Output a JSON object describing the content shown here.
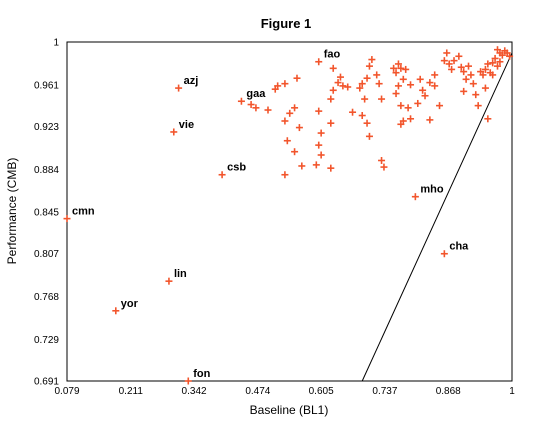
{
  "chart_data": {
    "type": "scatter",
    "title": "Figure 1",
    "xlabel": "Baseline (BL1)",
    "ylabel": "Performance (CMB)",
    "xlim": [
      0.079,
      1.0
    ],
    "ylim": [
      0.691,
      1.0
    ],
    "x_ticks": [
      "0.079",
      "0.211",
      "0.342",
      "0.474",
      "0.605",
      "0.737",
      "0.868",
      "1"
    ],
    "y_ticks": [
      "0.691",
      "0.729",
      "0.768",
      "0.807",
      "0.845",
      "0.884",
      "0.923",
      "0.961",
      "1"
    ],
    "x_tick_values": [
      0.079,
      0.211,
      0.342,
      0.474,
      0.605,
      0.737,
      0.868,
      1.0
    ],
    "y_tick_values": [
      0.691,
      0.729,
      0.768,
      0.807,
      0.845,
      0.884,
      0.923,
      0.961,
      1.0
    ],
    "grid": false,
    "marker_color": "#f2552c",
    "reference_line": {
      "x": [
        0.69,
        1.0
      ],
      "y": [
        0.691,
        0.99
      ]
    },
    "labeled_points": [
      {
        "label": "fao",
        "x": 0.6,
        "y": 0.982
      },
      {
        "label": "azj",
        "x": 0.31,
        "y": 0.958
      },
      {
        "label": "gaa",
        "x": 0.44,
        "y": 0.946
      },
      {
        "label": "vie",
        "x": 0.3,
        "y": 0.918
      },
      {
        "label": "csb",
        "x": 0.4,
        "y": 0.879
      },
      {
        "label": "mho",
        "x": 0.8,
        "y": 0.859
      },
      {
        "label": "cmn",
        "x": 0.079,
        "y": 0.839
      },
      {
        "label": "cha",
        "x": 0.86,
        "y": 0.807
      },
      {
        "label": "lin",
        "x": 0.29,
        "y": 0.782
      },
      {
        "label": "yor",
        "x": 0.18,
        "y": 0.755
      },
      {
        "label": "fon",
        "x": 0.33,
        "y": 0.691
      }
    ],
    "points": [
      [
        0.46,
        0.943
      ],
      [
        0.47,
        0.94
      ],
      [
        0.495,
        0.938
      ],
      [
        0.51,
        0.957
      ],
      [
        0.515,
        0.96
      ],
      [
        0.53,
        0.962
      ],
      [
        0.555,
        0.967
      ],
      [
        0.53,
        0.928
      ],
      [
        0.54,
        0.935
      ],
      [
        0.55,
        0.94
      ],
      [
        0.56,
        0.922
      ],
      [
        0.535,
        0.91
      ],
      [
        0.55,
        0.9
      ],
      [
        0.565,
        0.887
      ],
      [
        0.53,
        0.879
      ],
      [
        0.6,
        0.937
      ],
      [
        0.605,
        0.917
      ],
      [
        0.6,
        0.906
      ],
      [
        0.605,
        0.897
      ],
      [
        0.595,
        0.888
      ],
      [
        0.625,
        0.885
      ],
      [
        0.625,
        0.926
      ],
      [
        0.625,
        0.948
      ],
      [
        0.63,
        0.956
      ],
      [
        0.64,
        0.963
      ],
      [
        0.645,
        0.968
      ],
      [
        0.65,
        0.96
      ],
      [
        0.66,
        0.959
      ],
      [
        0.63,
        0.976
      ],
      [
        0.67,
        0.936
      ],
      [
        0.685,
        0.958
      ],
      [
        0.69,
        0.962
      ],
      [
        0.695,
        0.948
      ],
      [
        0.69,
        0.933
      ],
      [
        0.7,
        0.926
      ],
      [
        0.705,
        0.914
      ],
      [
        0.7,
        0.967
      ],
      [
        0.705,
        0.978
      ],
      [
        0.71,
        0.984
      ],
      [
        0.72,
        0.97
      ],
      [
        0.725,
        0.962
      ],
      [
        0.73,
        0.948
      ],
      [
        0.73,
        0.892
      ],
      [
        0.735,
        0.886
      ],
      [
        0.755,
        0.976
      ],
      [
        0.76,
        0.972
      ],
      [
        0.765,
        0.98
      ],
      [
        0.77,
        0.976
      ],
      [
        0.78,
        0.975
      ],
      [
        0.775,
        0.966
      ],
      [
        0.765,
        0.96
      ],
      [
        0.76,
        0.953
      ],
      [
        0.77,
        0.942
      ],
      [
        0.77,
        0.925
      ],
      [
        0.775,
        0.928
      ],
      [
        0.785,
        0.94
      ],
      [
        0.79,
        0.93
      ],
      [
        0.79,
        0.961
      ],
      [
        0.81,
        0.966
      ],
      [
        0.815,
        0.956
      ],
      [
        0.805,
        0.944
      ],
      [
        0.82,
        0.951
      ],
      [
        0.83,
        0.963
      ],
      [
        0.84,
        0.97
      ],
      [
        0.84,
        0.96
      ],
      [
        0.83,
        0.929
      ],
      [
        0.85,
        0.942
      ],
      [
        0.86,
        0.983
      ],
      [
        0.865,
        0.99
      ],
      [
        0.87,
        0.98
      ],
      [
        0.875,
        0.975
      ],
      [
        0.88,
        0.983
      ],
      [
        0.89,
        0.987
      ],
      [
        0.895,
        0.977
      ],
      [
        0.9,
        0.973
      ],
      [
        0.905,
        0.966
      ],
      [
        0.91,
        0.978
      ],
      [
        0.915,
        0.97
      ],
      [
        0.92,
        0.962
      ],
      [
        0.925,
        0.952
      ],
      [
        0.935,
        0.973
      ],
      [
        0.94,
        0.97
      ],
      [
        0.945,
        0.975
      ],
      [
        0.95,
        0.98
      ],
      [
        0.955,
        0.972
      ],
      [
        0.96,
        0.981
      ],
      [
        0.965,
        0.985
      ],
      [
        0.97,
        0.993
      ],
      [
        0.975,
        0.99
      ],
      [
        0.98,
        0.988
      ],
      [
        0.985,
        0.992
      ],
      [
        0.99,
        0.99
      ],
      [
        0.995,
        0.987
      ],
      [
        0.97,
        0.978
      ],
      [
        0.96,
        0.97
      ],
      [
        0.95,
        0.93
      ],
      [
        0.93,
        0.942
      ],
      [
        0.945,
        0.958
      ],
      [
        0.975,
        0.982
      ],
      [
        0.9,
        0.955
      ]
    ]
  }
}
